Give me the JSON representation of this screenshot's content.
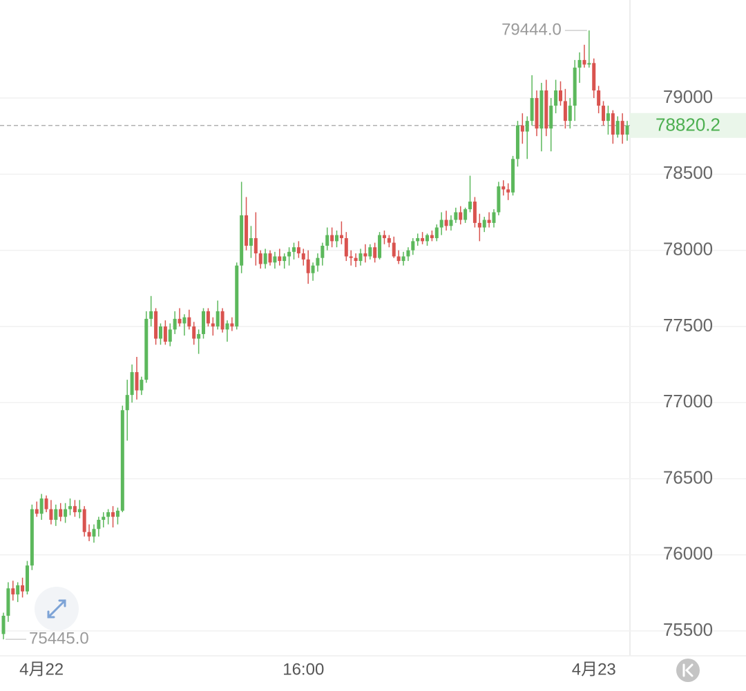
{
  "chart_data": {
    "type": "candlestick",
    "up_color": "#5cb85c",
    "down_color": "#d9534f",
    "ylim": [
      75337,
      79644
    ],
    "yticks": [
      75500,
      76000,
      76500,
      77000,
      77500,
      78000,
      78500,
      79000
    ],
    "grid": true,
    "categories": [
      null,
      null,
      null,
      null,
      null,
      null,
      null,
      null,
      "4月22",
      null,
      null,
      null,
      null,
      null,
      null,
      null,
      null,
      null,
      null,
      null,
      null,
      null,
      null,
      null,
      null,
      null,
      null,
      null,
      null,
      null,
      null,
      null,
      null,
      null,
      null,
      null,
      null,
      null,
      null,
      null,
      null,
      null,
      null,
      null,
      null,
      null,
      null,
      null,
      null,
      null,
      null,
      null,
      null,
      null,
      null,
      null,
      null,
      null,
      null,
      null,
      null,
      null,
      null,
      "16:00",
      null,
      null,
      null,
      null,
      null,
      null,
      null,
      null,
      null,
      null,
      null,
      null,
      null,
      null,
      null,
      null,
      null,
      null,
      null,
      null,
      null,
      null,
      null,
      null,
      null,
      null,
      null,
      null,
      null,
      null,
      null,
      null,
      null,
      null,
      null,
      null,
      null,
      null,
      null,
      null,
      null,
      null,
      null,
      null,
      null,
      null,
      null,
      null,
      null,
      null,
      null,
      null,
      null,
      null,
      null,
      null,
      null,
      null,
      null,
      null,
      "4月23",
      null,
      null,
      null,
      null,
      null,
      null,
      null,
      null,
      null,
      null,
      null,
      null
    ],
    "ohlc": [
      [
        75480,
        75620,
        75445,
        75600
      ],
      [
        75600,
        75820,
        75560,
        75780
      ],
      [
        75780,
        75830,
        75700,
        75740
      ],
      [
        75740,
        75820,
        75690,
        75800
      ],
      [
        75800,
        75850,
        75720,
        75760
      ],
      [
        75760,
        75960,
        75740,
        75930
      ],
      [
        75930,
        76330,
        75900,
        76300
      ],
      [
        76300,
        76350,
        76250,
        76270
      ],
      [
        76270,
        76400,
        76230,
        76370
      ],
      [
        76370,
        76390,
        76280,
        76300
      ],
      [
        76300,
        76360,
        76200,
        76230
      ],
      [
        76230,
        76330,
        76190,
        76300
      ],
      [
        76300,
        76340,
        76220,
        76250
      ],
      [
        76250,
        76340,
        76210,
        76300
      ],
      [
        76300,
        76370,
        76260,
        76320
      ],
      [
        76320,
        76360,
        76250,
        76280
      ],
      [
        76280,
        76360,
        76240,
        76300
      ],
      [
        76300,
        76320,
        76120,
        76150
      ],
      [
        76150,
        76200,
        76090,
        76120
      ],
      [
        76120,
        76200,
        76080,
        76170
      ],
      [
        76170,
        76250,
        76120,
        76230
      ],
      [
        76230,
        76280,
        76180,
        76250
      ],
      [
        76250,
        76300,
        76200,
        76280
      ],
      [
        76280,
        76320,
        76180,
        76250
      ],
      [
        76250,
        76310,
        76200,
        76290
      ],
      [
        76290,
        76980,
        76280,
        76950
      ],
      [
        76950,
        77150,
        76750,
        77050
      ],
      [
        77050,
        77250,
        77000,
        77200
      ],
      [
        77200,
        77300,
        77020,
        77080
      ],
      [
        77080,
        77170,
        77050,
        77150
      ],
      [
        77150,
        77600,
        77130,
        77550
      ],
      [
        77550,
        77700,
        77500,
        77600
      ],
      [
        77600,
        77620,
        77380,
        77420
      ],
      [
        77420,
        77520,
        77380,
        77500
      ],
      [
        77500,
        77540,
        77380,
        77400
      ],
      [
        77400,
        77520,
        77370,
        77480
      ],
      [
        77480,
        77600,
        77450,
        77550
      ],
      [
        77550,
        77620,
        77500,
        77520
      ],
      [
        77520,
        77580,
        77440,
        77560
      ],
      [
        77560,
        77610,
        77480,
        77500
      ],
      [
        77500,
        77530,
        77380,
        77420
      ],
      [
        77420,
        77480,
        77320,
        77450
      ],
      [
        77450,
        77620,
        77420,
        77600
      ],
      [
        77600,
        77620,
        77500,
        77520
      ],
      [
        77520,
        77560,
        77440,
        77500
      ],
      [
        77500,
        77670,
        77480,
        77600
      ],
      [
        77600,
        77620,
        77460,
        77480
      ],
      [
        77480,
        77540,
        77400,
        77520
      ],
      [
        77520,
        77560,
        77470,
        77500
      ],
      [
        77500,
        77920,
        77480,
        77900
      ],
      [
        77900,
        78450,
        77850,
        78230
      ],
      [
        78230,
        78350,
        78000,
        78030
      ],
      [
        78030,
        78160,
        77950,
        78080
      ],
      [
        78080,
        78250,
        77900,
        77980
      ],
      [
        77980,
        78000,
        77880,
        77910
      ],
      [
        77910,
        78010,
        77880,
        77980
      ],
      [
        77980,
        78000,
        77900,
        77920
      ],
      [
        77920,
        77990,
        77880,
        77960
      ],
      [
        77960,
        78010,
        77900,
        77930
      ],
      [
        77930,
        77980,
        77880,
        77960
      ],
      [
        77960,
        78020,
        77900,
        77990
      ],
      [
        77990,
        78050,
        77940,
        78020
      ],
      [
        78020,
        78060,
        77950,
        77980
      ],
      [
        77980,
        78010,
        77900,
        77940
      ],
      [
        77940,
        78000,
        77780,
        77850
      ],
      [
        77850,
        77920,
        77800,
        77900
      ],
      [
        77900,
        77980,
        77860,
        77950
      ],
      [
        77950,
        78050,
        77900,
        78030
      ],
      [
        78030,
        78150,
        78000,
        78100
      ],
      [
        78100,
        78150,
        78020,
        78060
      ],
      [
        78060,
        78130,
        78020,
        78100
      ],
      [
        78100,
        78190,
        78040,
        78080
      ],
      [
        78080,
        78120,
        77930,
        77960
      ],
      [
        77960,
        78000,
        77900,
        77950
      ],
      [
        77950,
        77980,
        77890,
        77930
      ],
      [
        77930,
        78010,
        77900,
        77980
      ],
      [
        77980,
        78040,
        77920,
        77960
      ],
      [
        77960,
        78040,
        77940,
        78020
      ],
      [
        78020,
        78050,
        77920,
        77950
      ],
      [
        77950,
        78120,
        77940,
        78100
      ],
      [
        78100,
        78130,
        78040,
        78080
      ],
      [
        78080,
        78100,
        78020,
        78050
      ],
      [
        78050,
        78090,
        77950,
        77960
      ],
      [
        77960,
        78000,
        77910,
        77930
      ],
      [
        77930,
        77990,
        77900,
        77960
      ],
      [
        77960,
        78020,
        77930,
        78000
      ],
      [
        78000,
        78080,
        77970,
        78060
      ],
      [
        78060,
        78110,
        78030,
        78080
      ],
      [
        78080,
        78120,
        78040,
        78060
      ],
      [
        78060,
        78110,
        78030,
        78100
      ],
      [
        78100,
        78130,
        78060,
        78080
      ],
      [
        78080,
        78170,
        78060,
        78150
      ],
      [
        78150,
        78250,
        78100,
        78200
      ],
      [
        78200,
        78260,
        78130,
        78160
      ],
      [
        78160,
        78230,
        78130,
        78200
      ],
      [
        78200,
        78280,
        78180,
        78250
      ],
      [
        78250,
        78290,
        78170,
        78200
      ],
      [
        78200,
        78280,
        78180,
        78270
      ],
      [
        78270,
        78490,
        78250,
        78320
      ],
      [
        78320,
        78350,
        78150,
        78180
      ],
      [
        78180,
        78240,
        78060,
        78150
      ],
      [
        78150,
        78220,
        78120,
        78200
      ],
      [
        78200,
        78250,
        78150,
        78180
      ],
      [
        78180,
        78270,
        78150,
        78250
      ],
      [
        78250,
        78450,
        78230,
        78420
      ],
      [
        78420,
        78460,
        78360,
        78400
      ],
      [
        78400,
        78440,
        78330,
        78380
      ],
      [
        78380,
        78620,
        78360,
        78600
      ],
      [
        78600,
        78850,
        78550,
        78820
      ],
      [
        78820,
        78900,
        78700,
        78780
      ],
      [
        78780,
        78880,
        78600,
        78850
      ],
      [
        78850,
        79150,
        78820,
        79000
      ],
      [
        79000,
        79050,
        78750,
        78800
      ],
      [
        78800,
        79100,
        78650,
        79050
      ],
      [
        79050,
        79120,
        78750,
        78800
      ],
      [
        78800,
        79000,
        78650,
        78950
      ],
      [
        78950,
        79120,
        78900,
        79050
      ],
      [
        79050,
        79110,
        78950,
        78980
      ],
      [
        78980,
        79060,
        78800,
        78850
      ],
      [
        78850,
        79000,
        78800,
        78950
      ],
      [
        78950,
        79250,
        78850,
        79200
      ],
      [
        79200,
        79300,
        79100,
        79250
      ],
      [
        79250,
        79350,
        79200,
        79220
      ],
      [
        79220,
        79444,
        79200,
        79230
      ],
      [
        79230,
        79260,
        79000,
        79050
      ],
      [
        79050,
        79080,
        78900,
        78950
      ],
      [
        78950,
        78980,
        78820,
        78850
      ],
      [
        78850,
        78950,
        78760,
        78900
      ],
      [
        78900,
        78920,
        78700,
        78760
      ],
      [
        78760,
        78880,
        78740,
        78850
      ],
      [
        78850,
        78900,
        78700,
        78760
      ],
      [
        78760,
        78850,
        78720,
        78820.2
      ]
    ],
    "annotations": [
      {
        "value": 79444,
        "label": "79444.0"
      },
      {
        "value": 75445,
        "label": "75445.0"
      }
    ],
    "last_price": 78820.2,
    "last_price_color": "#4caf50"
  }
}
